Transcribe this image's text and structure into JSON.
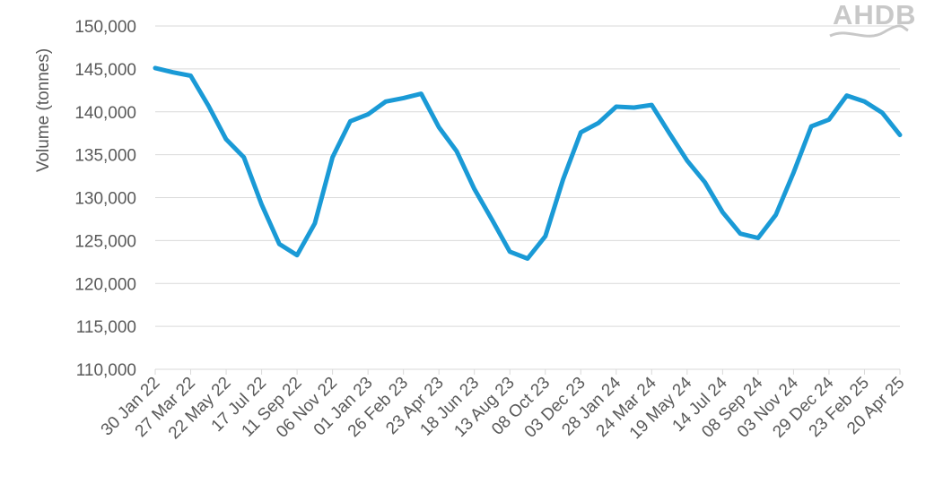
{
  "logo": {
    "text": "AHDB"
  },
  "chart_data": {
    "type": "line",
    "title": "",
    "xlabel": "",
    "ylabel": "Volume (tonnes)",
    "ylim": [
      110000,
      150000
    ],
    "yticks": [
      110000,
      115000,
      120000,
      125000,
      130000,
      135000,
      140000,
      145000,
      150000
    ],
    "ytick_labels": [
      "110,000",
      "115,000",
      "120,000",
      "125,000",
      "130,000",
      "135,000",
      "140,000",
      "145,000",
      "150,000"
    ],
    "xtick_labels": [
      "30 Jan 22",
      "27 Mar 22",
      "22 May 22",
      "17 Jul 22",
      "11 Sep 22",
      "06 Nov 22",
      "01 Jan 23",
      "26 Feb 23",
      "23 Apr 23",
      "18 Jun 23",
      "13 Aug 23",
      "08 Oct 23",
      "03 Dec 23",
      "28 Jan 24",
      "24 Mar 24",
      "19 May 24",
      "14 Jul 24",
      "08 Sep 24",
      "03 Nov 24",
      "29 Dec 24",
      "23 Feb 25",
      "20 Apr 25"
    ],
    "grid": true,
    "color": "#1a9ad6",
    "series": [
      {
        "values": [
          145100,
          144600,
          144200,
          140700,
          136800,
          134700,
          129200,
          124600,
          123300,
          127000,
          134700,
          138900,
          139700,
          141200,
          141600,
          142100,
          138200,
          135400,
          131000,
          127400,
          123700,
          122900,
          125500,
          132100,
          137600,
          138700,
          140600,
          140500,
          140800,
          137500,
          134300,
          131800,
          128300,
          125800,
          125300,
          128000,
          132900,
          138300,
          139100,
          141900,
          141200,
          139900,
          137300
        ]
      }
    ]
  }
}
